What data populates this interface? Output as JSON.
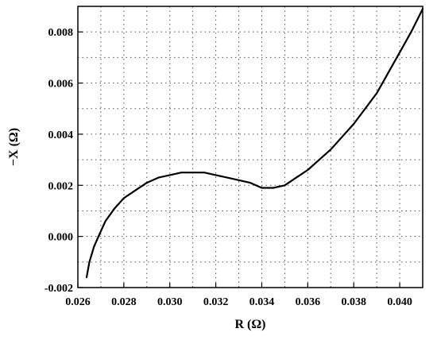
{
  "chart_data": {
    "type": "line",
    "xlabel": "R (Ω)",
    "ylabel": "−X (Ω)",
    "xlim": [
      0.026,
      0.041
    ],
    "ylim": [
      -0.002,
      0.009
    ],
    "x_ticks": [
      "0.026",
      "0.028",
      "0.030",
      "0.032",
      "0.034",
      "0.036",
      "0.038",
      "0.040"
    ],
    "y_ticks": [
      "-0.002",
      "0.000",
      "0.002",
      "0.004",
      "0.006",
      "0.008"
    ],
    "x_tick_values": [
      0.026,
      0.028,
      0.03,
      0.032,
      0.034,
      0.036,
      0.038,
      0.04
    ],
    "y_tick_values": [
      -0.002,
      0.0,
      0.002,
      0.004,
      0.006,
      0.008
    ],
    "grid": true,
    "grid_style": "dotted",
    "series": [
      {
        "color": "#000000",
        "x": [
          0.02638,
          0.0265,
          0.0267,
          0.0269,
          0.0272,
          0.0276,
          0.028,
          0.0285,
          0.029,
          0.0295,
          0.03,
          0.0305,
          0.031,
          0.0315,
          0.032,
          0.0325,
          0.033,
          0.0335,
          0.034,
          0.0345,
          0.035,
          0.0355,
          0.036,
          0.0365,
          0.037,
          0.0375,
          0.038,
          0.0385,
          0.039,
          0.0395,
          0.04,
          0.0405,
          0.041
        ],
        "y": [
          -0.0016,
          -0.001,
          -0.0004,
          0.0,
          0.0006,
          0.0011,
          0.0015,
          0.0018,
          0.0021,
          0.0023,
          0.0024,
          0.0025,
          0.0025,
          0.0025,
          0.0024,
          0.0023,
          0.0022,
          0.0021,
          0.0019,
          0.0019,
          0.002,
          0.0023,
          0.0026,
          0.003,
          0.0034,
          0.0039,
          0.0044,
          0.005,
          0.0056,
          0.0064,
          0.0072,
          0.008,
          0.0089
        ]
      }
    ]
  }
}
